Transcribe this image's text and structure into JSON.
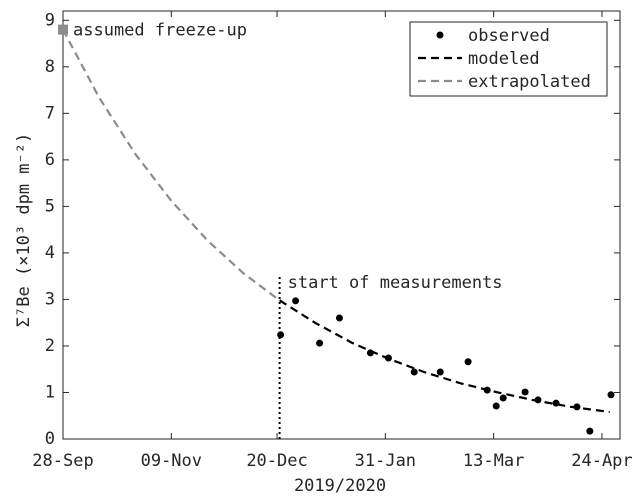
{
  "chart_data": {
    "type": "line",
    "xlabel": "2019/2020",
    "ylabel": "Σ⁷Be (×10³ dpm m⁻²)",
    "xlim": [
      0,
      216
    ],
    "ylim": [
      0,
      9.2
    ],
    "xticks": [
      {
        "value": 0,
        "label": "28-Sep"
      },
      {
        "value": 42,
        "label": "09-Nov"
      },
      {
        "value": 83,
        "label": "20-Dec"
      },
      {
        "value": 125,
        "label": "31-Jan"
      },
      {
        "value": 167,
        "label": "13-Mar"
      },
      {
        "value": 209,
        "label": "24-Apr"
      }
    ],
    "yticks": [
      0,
      1,
      2,
      3,
      4,
      5,
      6,
      7,
      8,
      9
    ],
    "legend": "upper right",
    "series": [
      {
        "name": "observed",
        "style": "points",
        "color": "#000000",
        "x": [
          84.4,
          90.2,
          99.5,
          107.2,
          119.2,
          126.2,
          136.2,
          146.3,
          157.1,
          164.5,
          168,
          170.7,
          179.2,
          184.2,
          191.2,
          199.3,
          204.3,
          212.5
        ],
        "values": [
          2.24,
          2.97,
          2.06,
          2.6,
          1.85,
          1.74,
          1.44,
          1.44,
          1.66,
          1.05,
          0.71,
          0.88,
          1.01,
          0.84,
          0.77,
          0.69,
          0.17,
          0.95
        ]
      },
      {
        "name": "modeled",
        "style": "dashed",
        "color": "#000000",
        "x": [
          84,
          98,
          112,
          126,
          140,
          154,
          168,
          182,
          196,
          212
        ],
        "values": [
          2.98,
          2.49,
          2.07,
          1.73,
          1.44,
          1.2,
          1.01,
          0.84,
          0.7,
          0.58
        ]
      },
      {
        "name": "extrapolated",
        "style": "dashed",
        "color": "#8c8c8c",
        "x": [
          0,
          14,
          28,
          42,
          56,
          70,
          84
        ],
        "values": [
          8.8,
          7.34,
          6.13,
          5.12,
          4.27,
          3.56,
          2.98
        ]
      }
    ],
    "annotations": [
      {
        "text": "assumed freeze-up",
        "x": 0,
        "y": 8.8,
        "color": "#8c8c8c"
      },
      {
        "text": "start of measurements",
        "x": 84,
        "y": 3.5,
        "color": "#000000"
      }
    ]
  }
}
